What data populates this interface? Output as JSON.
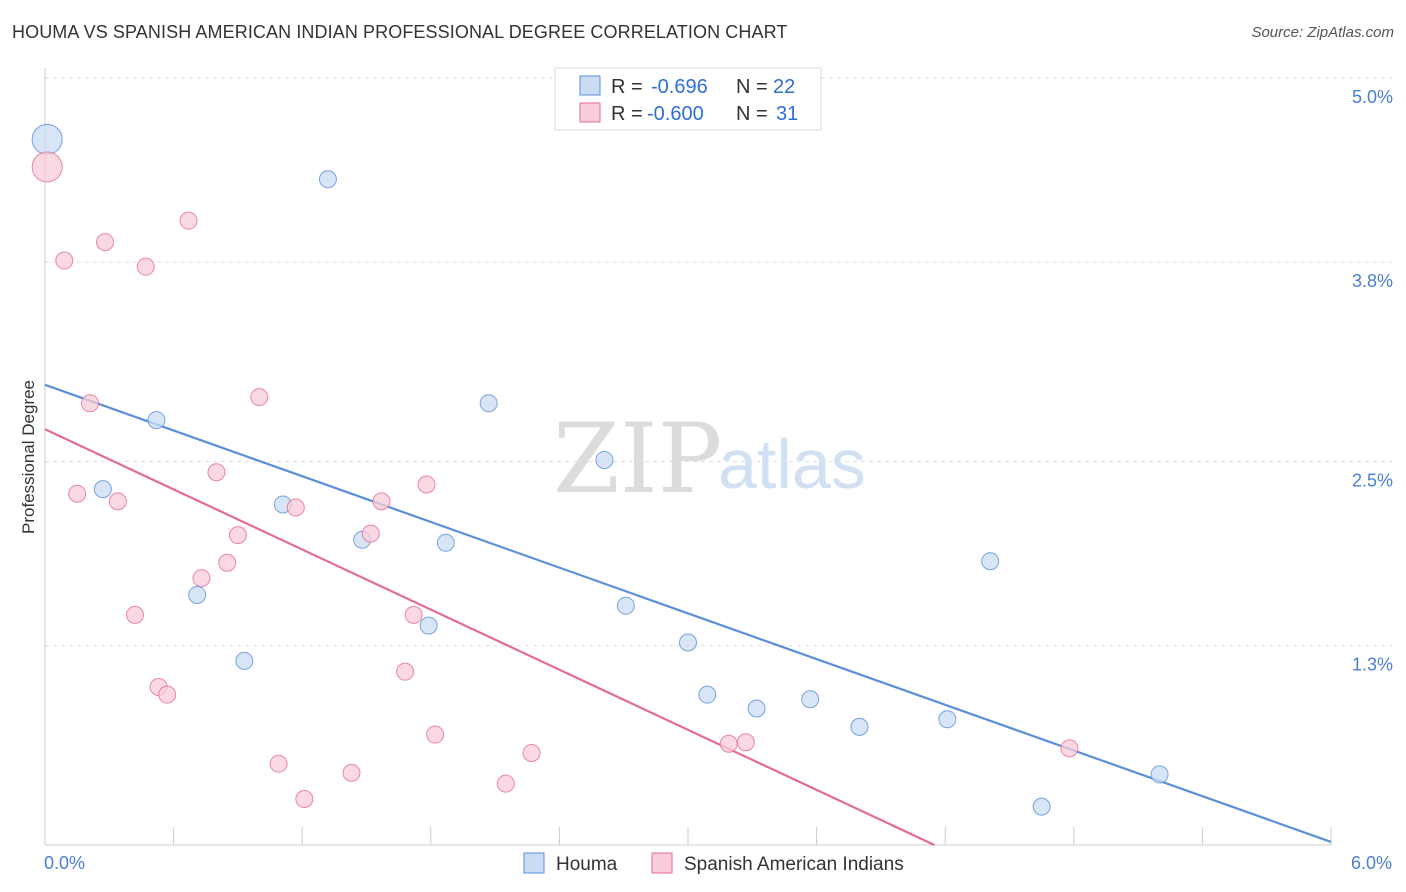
{
  "header": {
    "title": "HOUMA VS SPANISH AMERICAN INDIAN PROFESSIONAL DEGREE CORRELATION CHART",
    "source": "Source: ZipAtlas.com"
  },
  "stats": [
    {
      "r_label": "R =",
      "r_value": "-0.696",
      "n_label": "N =",
      "n_value": "22",
      "color": "#a8c8f0"
    },
    {
      "r_label": "R =",
      "r_value": "-0.600",
      "n_label": "N =",
      "n_value": "31",
      "color": "#f5b8cb"
    }
  ],
  "watermark": {
    "zip": "ZIP",
    "atlas": "atlas"
  },
  "chart_data": {
    "type": "scatter",
    "title": "HOUMA VS SPANISH AMERICAN INDIAN PROFESSIONAL DEGREE CORRELATION CHART",
    "xlabel": "",
    "ylabel": "Professional Degree",
    "xlim": [
      0.0,
      6.0
    ],
    "ylim": [
      0.0,
      5.0
    ],
    "x_tick_labels": [
      "0.0%",
      "6.0%"
    ],
    "y_ticks": [
      {
        "value": 5.0,
        "label": "5.0%"
      },
      {
        "value": 3.8,
        "label": "3.8%"
      },
      {
        "value": 2.5,
        "label": "2.5%"
      },
      {
        "value": 1.3,
        "label": "1.3%"
      }
    ],
    "grid": "horizontal dashed",
    "legend_position": "bottom-center",
    "series": [
      {
        "name": "Houma",
        "color": "#5b8fd8",
        "fill": "#c9dcf4",
        "trend": {
          "x": [
            0.0,
            6.0
          ],
          "y": [
            3.0,
            0.02
          ]
        },
        "points": [
          {
            "x": 0.01,
            "y": 4.6,
            "big": true
          },
          {
            "x": 1.32,
            "y": 4.34
          },
          {
            "x": 0.52,
            "y": 2.77
          },
          {
            "x": 2.07,
            "y": 2.88
          },
          {
            "x": 0.27,
            "y": 2.32
          },
          {
            "x": 1.11,
            "y": 2.22
          },
          {
            "x": 2.61,
            "y": 2.51
          },
          {
            "x": 1.48,
            "y": 1.99
          },
          {
            "x": 1.87,
            "y": 1.97
          },
          {
            "x": 4.41,
            "y": 1.85
          },
          {
            "x": 0.71,
            "y": 1.63
          },
          {
            "x": 2.71,
            "y": 1.56
          },
          {
            "x": 1.79,
            "y": 1.43
          },
          {
            "x": 3.0,
            "y": 1.32
          },
          {
            "x": 0.93,
            "y": 1.2
          },
          {
            "x": 3.09,
            "y": 0.98
          },
          {
            "x": 3.32,
            "y": 0.89
          },
          {
            "x": 3.57,
            "y": 0.95
          },
          {
            "x": 3.8,
            "y": 0.77
          },
          {
            "x": 4.21,
            "y": 0.82
          },
          {
            "x": 5.2,
            "y": 0.46
          },
          {
            "x": 4.65,
            "y": 0.25
          }
        ]
      },
      {
        "name": "Spanish American Indians",
        "color": "#e46b96",
        "fill": "#f9ccd9",
        "trend": {
          "x": [
            0.0,
            4.15
          ],
          "y": [
            2.71,
            0.0
          ]
        },
        "points": [
          {
            "x": 0.01,
            "y": 4.42,
            "big": true
          },
          {
            "x": 0.67,
            "y": 4.07
          },
          {
            "x": 0.28,
            "y": 3.93
          },
          {
            "x": 0.09,
            "y": 3.81
          },
          {
            "x": 0.47,
            "y": 3.77
          },
          {
            "x": 1.0,
            "y": 2.92
          },
          {
            "x": 0.21,
            "y": 2.88
          },
          {
            "x": 0.8,
            "y": 2.43
          },
          {
            "x": 1.78,
            "y": 2.35
          },
          {
            "x": 0.15,
            "y": 2.29
          },
          {
            "x": 1.57,
            "y": 2.24
          },
          {
            "x": 0.34,
            "y": 2.24
          },
          {
            "x": 1.17,
            "y": 2.2
          },
          {
            "x": 1.52,
            "y": 2.03
          },
          {
            "x": 0.9,
            "y": 2.02
          },
          {
            "x": 0.85,
            "y": 1.84
          },
          {
            "x": 0.73,
            "y": 1.74
          },
          {
            "x": 0.42,
            "y": 1.5
          },
          {
            "x": 1.72,
            "y": 1.5
          },
          {
            "x": 1.68,
            "y": 1.13
          },
          {
            "x": 0.53,
            "y": 1.03
          },
          {
            "x": 0.57,
            "y": 0.98
          },
          {
            "x": 1.82,
            "y": 0.72
          },
          {
            "x": 3.19,
            "y": 0.66
          },
          {
            "x": 3.27,
            "y": 0.67
          },
          {
            "x": 2.27,
            "y": 0.6
          },
          {
            "x": 4.78,
            "y": 0.63
          },
          {
            "x": 1.09,
            "y": 0.53
          },
          {
            "x": 1.43,
            "y": 0.47
          },
          {
            "x": 2.15,
            "y": 0.4
          },
          {
            "x": 1.21,
            "y": 0.3
          }
        ]
      }
    ]
  }
}
